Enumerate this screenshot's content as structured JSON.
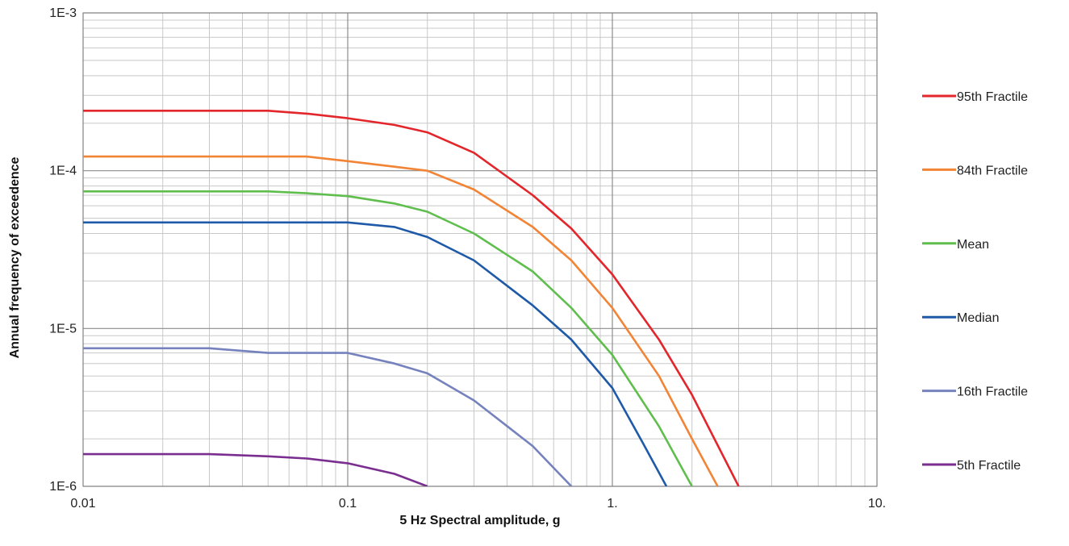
{
  "chart_data": {
    "type": "line",
    "xlabel": "5 Hz Spectral amplitude, g",
    "ylabel": "Annual frequency of exceedence",
    "xscale": "log",
    "yscale": "log",
    "xlim": [
      0.01,
      10
    ],
    "ylim": [
      1e-06,
      0.001
    ],
    "x_tick_labels": [
      "0.01",
      "0.1",
      "1.",
      "10."
    ],
    "y_tick_labels": [
      "1E-6",
      "1E-5",
      "1E-4",
      "1E-3"
    ],
    "grid": "major and minor",
    "legend_position": "right",
    "series": [
      {
        "name": "95th Fractile",
        "color": "#e3262b",
        "points": [
          [
            0.01,
            0.00024
          ],
          [
            0.03,
            0.00024
          ],
          [
            0.05,
            0.00024
          ],
          [
            0.07,
            0.00023
          ],
          [
            0.1,
            0.000215
          ],
          [
            0.15,
            0.000195
          ],
          [
            0.2,
            0.000175
          ],
          [
            0.3,
            0.00013
          ],
          [
            0.5,
            7e-05
          ],
          [
            0.7,
            4.3e-05
          ],
          [
            1.0,
            2.2e-05
          ],
          [
            1.5,
            8.5e-06
          ],
          [
            2.0,
            3.8e-06
          ],
          [
            3.0,
            1e-06
          ]
        ]
      },
      {
        "name": "84th Fractile",
        "color": "#f28436",
        "points": [
          [
            0.01,
            0.000123
          ],
          [
            0.03,
            0.000123
          ],
          [
            0.05,
            0.000123
          ],
          [
            0.07,
            0.000123
          ],
          [
            0.1,
            0.000115
          ],
          [
            0.15,
            0.000106
          ],
          [
            0.2,
            0.0001
          ],
          [
            0.3,
            7.6e-05
          ],
          [
            0.5,
            4.4e-05
          ],
          [
            0.7,
            2.7e-05
          ],
          [
            1.0,
            1.35e-05
          ],
          [
            1.5,
            5e-06
          ],
          [
            2.0,
            2e-06
          ],
          [
            2.5,
            1e-06
          ]
        ]
      },
      {
        "name": "Mean",
        "color": "#5fbe4d",
        "points": [
          [
            0.01,
            7.4e-05
          ],
          [
            0.03,
            7.4e-05
          ],
          [
            0.05,
            7.4e-05
          ],
          [
            0.07,
            7.2e-05
          ],
          [
            0.1,
            6.9e-05
          ],
          [
            0.15,
            6.2e-05
          ],
          [
            0.2,
            5.5e-05
          ],
          [
            0.3,
            4e-05
          ],
          [
            0.5,
            2.3e-05
          ],
          [
            0.7,
            1.35e-05
          ],
          [
            1.0,
            6.8e-06
          ],
          [
            1.5,
            2.4e-06
          ],
          [
            2.0,
            1e-06
          ]
        ]
      },
      {
        "name": "Median",
        "color": "#1f5aa8",
        "points": [
          [
            0.01,
            4.7e-05
          ],
          [
            0.03,
            4.7e-05
          ],
          [
            0.05,
            4.7e-05
          ],
          [
            0.07,
            4.7e-05
          ],
          [
            0.1,
            4.7e-05
          ],
          [
            0.15,
            4.4e-05
          ],
          [
            0.2,
            3.8e-05
          ],
          [
            0.3,
            2.7e-05
          ],
          [
            0.5,
            1.4e-05
          ],
          [
            0.7,
            8.5e-06
          ],
          [
            1.0,
            4.2e-06
          ],
          [
            1.3,
            1.9e-06
          ],
          [
            1.6,
            1e-06
          ]
        ]
      },
      {
        "name": "16th Fractile",
        "color": "#7582bd",
        "points": [
          [
            0.01,
            7.5e-06
          ],
          [
            0.03,
            7.5e-06
          ],
          [
            0.05,
            7e-06
          ],
          [
            0.07,
            7e-06
          ],
          [
            0.1,
            7e-06
          ],
          [
            0.15,
            6e-06
          ],
          [
            0.2,
            5.2e-06
          ],
          [
            0.3,
            3.5e-06
          ],
          [
            0.5,
            1.8e-06
          ],
          [
            0.7,
            1e-06
          ]
        ]
      },
      {
        "name": "5th Fractile",
        "color": "#7a2e8f",
        "points": [
          [
            0.01,
            1.6e-06
          ],
          [
            0.03,
            1.6e-06
          ],
          [
            0.05,
            1.55e-06
          ],
          [
            0.07,
            1.5e-06
          ],
          [
            0.1,
            1.4e-06
          ],
          [
            0.15,
            1.2e-06
          ],
          [
            0.2,
            1e-06
          ]
        ]
      }
    ]
  }
}
